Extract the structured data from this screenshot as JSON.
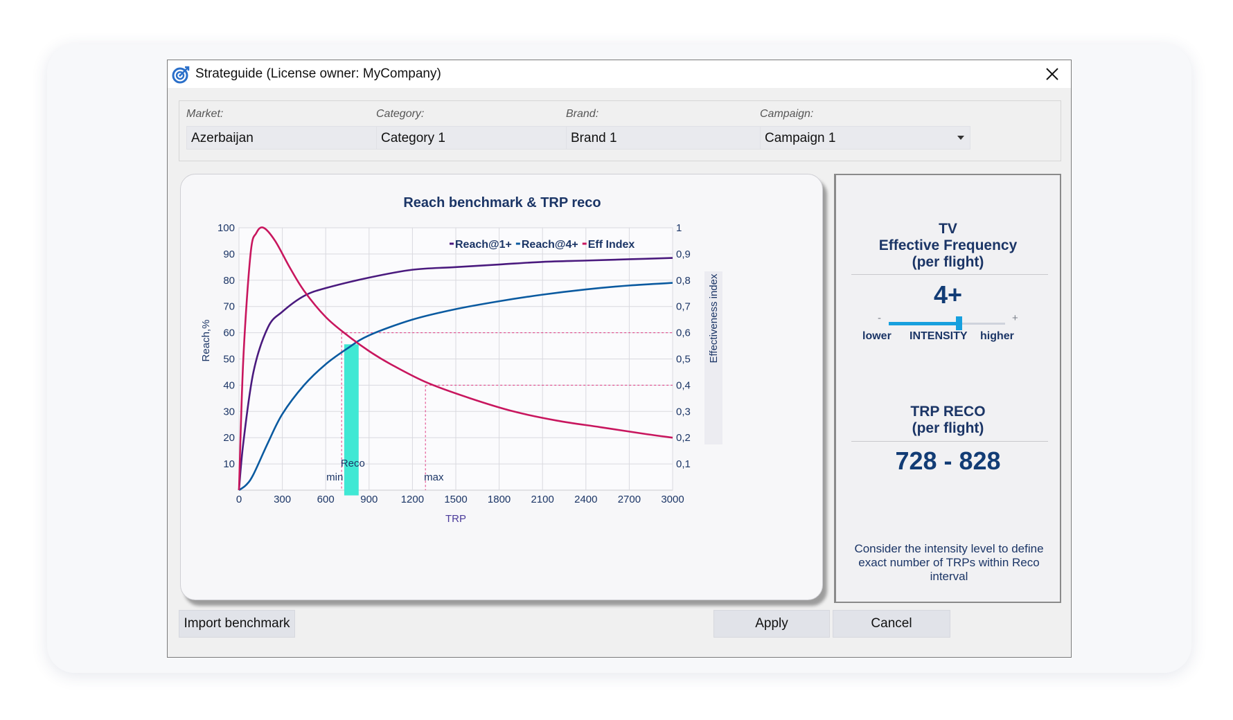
{
  "window": {
    "title": "Strateguide (License owner: MyCompany)",
    "icon": "target-icon",
    "close_icon": "close-icon"
  },
  "filters": [
    {
      "label": "Market:",
      "value": "Azerbaijan"
    },
    {
      "label": "Category:",
      "value": "Category 1"
    },
    {
      "label": "Brand:",
      "value": "Brand 1"
    },
    {
      "label": "Campaign:",
      "value": "Campaign 1"
    }
  ],
  "chart_data": {
    "type": "line",
    "title": "Reach benchmark & TRP reco",
    "xlabel": "TRP",
    "ylabel": "Reach,%",
    "y2label": "Effectiveness index",
    "xlim": [
      0,
      3000
    ],
    "ylim": [
      0,
      100
    ],
    "y2lim": [
      0,
      1
    ],
    "x_ticks": [
      "0",
      "300",
      "600",
      "900",
      "1200",
      "1500",
      "1800",
      "2100",
      "2400",
      "2700",
      "3000"
    ],
    "y_ticks": [
      "10",
      "20",
      "30",
      "40",
      "50",
      "60",
      "70",
      "80",
      "90",
      "100"
    ],
    "y2_ticks": [
      "0,1",
      "0,2",
      "0,3",
      "0,4",
      "0,5",
      "0,6",
      "0,7",
      "0,8",
      "0,9",
      "1"
    ],
    "grid": true,
    "legend": "top-right",
    "series": [
      {
        "name": "Reach@1+",
        "axis": "left",
        "color": "#4a1a7e",
        "x": [
          0,
          30,
          100,
          200,
          300,
          450,
          600,
          900,
          1200,
          1500,
          1800,
          2100,
          2400,
          2700,
          3000
        ],
        "y": [
          0,
          18,
          45,
          62,
          68,
          74,
          77,
          81,
          84,
          85,
          86,
          87,
          87.5,
          88,
          88.5
        ]
      },
      {
        "name": "Reach@4+",
        "axis": "left",
        "color": "#0a5aa0",
        "x": [
          0,
          50,
          100,
          200,
          300,
          450,
          600,
          750,
          900,
          1200,
          1500,
          1800,
          2100,
          2400,
          2700,
          3000
        ],
        "y": [
          0,
          2,
          6,
          18,
          29,
          40,
          48,
          54,
          59,
          65,
          69,
          72,
          74.5,
          76.5,
          78,
          79
        ]
      },
      {
        "name": "Eff Index",
        "axis": "right",
        "color": "#c8165e",
        "x": [
          0,
          30,
          80,
          120,
          170,
          250,
          350,
          450,
          600,
          750,
          900,
          1050,
          1300,
          1600,
          1900,
          2200,
          2500,
          2800,
          3000
        ],
        "y": [
          0,
          0.5,
          0.9,
          0.98,
          1.0,
          0.95,
          0.85,
          0.76,
          0.66,
          0.59,
          0.53,
          0.48,
          0.41,
          0.35,
          0.3,
          0.265,
          0.24,
          0.215,
          0.2
        ]
      }
    ],
    "reco_band": {
      "x_min": 728,
      "x_max": 828,
      "color": "#40e8d4",
      "label": "Reco"
    },
    "markers": [
      {
        "label": "min",
        "x": 710,
        "y2": 0.6
      },
      {
        "label": "max",
        "x": 1290,
        "y2": 0.4
      }
    ]
  },
  "side": {
    "heading1": "TV",
    "heading2": "Effective Frequency",
    "heading3": "(per flight)",
    "frequency_value": "4+",
    "slider": {
      "minus": "-",
      "plus": "+",
      "low_label": "lower",
      "mid_label": "INTENSITY",
      "high_label": "higher",
      "level": 0.6
    },
    "reco_heading1": "TRP RECO",
    "reco_heading2": "(per flight)",
    "reco_value": "728 - 828",
    "note": "Consider the intensity level to define exact number of TRPs within Reco interval"
  },
  "buttons": {
    "import": "Import benchmark",
    "apply": "Apply",
    "cancel": "Cancel"
  }
}
